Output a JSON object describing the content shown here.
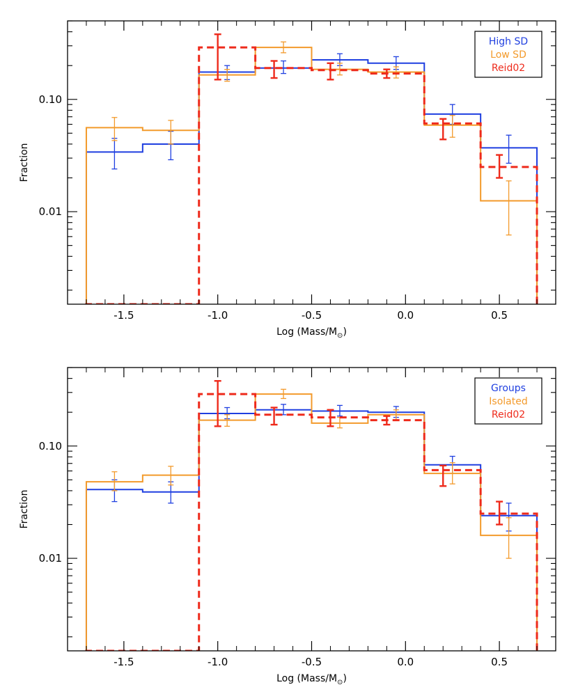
{
  "chart_data": [
    {
      "type": "step",
      "title": "",
      "xlabel": "Log (Mass/M",
      "xlabel_sub": "⊙",
      "xlabel_close": ")",
      "ylabel": "Fraction",
      "xlim": [
        -1.8,
        0.8
      ],
      "ylim": [
        0.0015,
        0.5
      ],
      "yscale": "log",
      "grid": false,
      "legend_position": "top-right",
      "xticks": [
        -1.5,
        -1.0,
        -0.5,
        0.0,
        0.5
      ],
      "xtick_labels": [
        "-1.5",
        "-1.0",
        "-0.5",
        "0.0",
        "0.5"
      ],
      "yticks": [
        0.01,
        0.1
      ],
      "ytick_labels": [
        "0.01",
        "0.10"
      ],
      "series": [
        {
          "name": "High SD",
          "color": "#1f3fe0",
          "style": "solid",
          "bins": [
            {
              "x0": -1.7,
              "x1": -1.4,
              "y": 0.034
            },
            {
              "x0": -1.4,
              "x1": -1.1,
              "y": 0.04
            },
            {
              "x0": -1.1,
              "x1": -0.8,
              "y": 0.175
            },
            {
              "x0": -0.8,
              "x1": -0.5,
              "y": 0.19
            },
            {
              "x0": -0.5,
              "x1": -0.2,
              "y": 0.225
            },
            {
              "x0": -0.2,
              "x1": 0.1,
              "y": 0.21
            },
            {
              "x0": 0.1,
              "x1": 0.4,
              "y": 0.074
            },
            {
              "x0": 0.4,
              "x1": 0.7,
              "y": 0.037
            }
          ],
          "errorbars": [
            {
              "x": -1.55,
              "low": 0.024,
              "high": 0.045
            },
            {
              "x": -1.25,
              "low": 0.029,
              "high": 0.052
            },
            {
              "x": -0.95,
              "low": 0.15,
              "high": 0.2
            },
            {
              "x": -0.65,
              "low": 0.17,
              "high": 0.22
            },
            {
              "x": -0.35,
              "low": 0.2,
              "high": 0.255
            },
            {
              "x": -0.05,
              "low": 0.185,
              "high": 0.24
            },
            {
              "x": 0.25,
              "low": 0.06,
              "high": 0.09
            },
            {
              "x": 0.55,
              "low": 0.027,
              "high": 0.048
            }
          ]
        },
        {
          "name": "Low SD",
          "color": "#f39a2b",
          "style": "solid",
          "bins": [
            {
              "x0": -1.7,
              "x1": -1.4,
              "y": 0.056
            },
            {
              "x0": -1.4,
              "x1": -1.1,
              "y": 0.053
            },
            {
              "x0": -1.1,
              "x1": -0.8,
              "y": 0.165
            },
            {
              "x0": -0.8,
              "x1": -0.5,
              "y": 0.29
            },
            {
              "x0": -0.5,
              "x1": -0.2,
              "y": 0.185
            },
            {
              "x0": -0.2,
              "x1": 0.1,
              "y": 0.175
            },
            {
              "x0": 0.1,
              "x1": 0.4,
              "y": 0.059
            },
            {
              "x0": 0.4,
              "x1": 0.7,
              "y": 0.0125
            }
          ],
          "errorbars": [
            {
              "x": -1.55,
              "low": 0.043,
              "high": 0.069
            },
            {
              "x": -1.25,
              "low": 0.04,
              "high": 0.065
            },
            {
              "x": -0.95,
              "low": 0.145,
              "high": 0.185
            },
            {
              "x": -0.65,
              "low": 0.26,
              "high": 0.325
            },
            {
              "x": -0.35,
              "low": 0.165,
              "high": 0.21
            },
            {
              "x": -0.05,
              "low": 0.155,
              "high": 0.195
            },
            {
              "x": 0.25,
              "low": 0.046,
              "high": 0.072
            },
            {
              "x": 0.55,
              "low": 0.0062,
              "high": 0.0188
            }
          ]
        },
        {
          "name": "Reid02",
          "color": "#ee2a1b",
          "style": "dashed",
          "bins": [
            {
              "x0": -1.7,
              "x1": -1.4,
              "y": 0.0015
            },
            {
              "x0": -1.4,
              "x1": -1.1,
              "y": 0.0015
            },
            {
              "x0": -1.1,
              "x1": -0.8,
              "y": 0.29
            },
            {
              "x0": -0.8,
              "x1": -0.5,
              "y": 0.19
            },
            {
              "x0": -0.5,
              "x1": -0.2,
              "y": 0.182
            },
            {
              "x0": -0.2,
              "x1": 0.1,
              "y": 0.17
            },
            {
              "x0": 0.1,
              "x1": 0.4,
              "y": 0.061
            },
            {
              "x0": 0.4,
              "x1": 0.7,
              "y": 0.025
            }
          ],
          "errorbars": [
            {
              "x": -1.0,
              "low": 0.15,
              "high": 0.38
            },
            {
              "x": -0.7,
              "low": 0.155,
              "high": 0.22
            },
            {
              "x": -0.4,
              "low": 0.15,
              "high": 0.21
            },
            {
              "x": -0.1,
              "low": 0.155,
              "high": 0.185
            },
            {
              "x": 0.2,
              "low": 0.044,
              "high": 0.067
            },
            {
              "x": 0.5,
              "low": 0.02,
              "high": 0.032
            }
          ]
        }
      ]
    },
    {
      "type": "step",
      "title": "",
      "xlabel": "Log (Mass/M",
      "xlabel_sub": "⊙",
      "xlabel_close": ")",
      "ylabel": "Fraction",
      "xlim": [
        -1.8,
        0.8
      ],
      "ylim": [
        0.0015,
        0.5
      ],
      "yscale": "log",
      "grid": false,
      "legend_position": "top-right",
      "xticks": [
        -1.5,
        -1.0,
        -0.5,
        0.0,
        0.5
      ],
      "xtick_labels": [
        "-1.5",
        "-1.0",
        "-0.5",
        "0.0",
        "0.5"
      ],
      "yticks": [
        0.01,
        0.1
      ],
      "ytick_labels": [
        "0.01",
        "0.10"
      ],
      "series": [
        {
          "name": "Groups",
          "color": "#1f3fe0",
          "style": "solid",
          "bins": [
            {
              "x0": -1.7,
              "x1": -1.4,
              "y": 0.041
            },
            {
              "x0": -1.4,
              "x1": -1.1,
              "y": 0.039
            },
            {
              "x0": -1.1,
              "x1": -0.8,
              "y": 0.195
            },
            {
              "x0": -0.8,
              "x1": -0.5,
              "y": 0.21
            },
            {
              "x0": -0.5,
              "x1": -0.2,
              "y": 0.205
            },
            {
              "x0": -0.2,
              "x1": 0.1,
              "y": 0.2
            },
            {
              "x0": 0.1,
              "x1": 0.4,
              "y": 0.068
            },
            {
              "x0": 0.4,
              "x1": 0.7,
              "y": 0.024
            }
          ],
          "errorbars": [
            {
              "x": -1.55,
              "low": 0.032,
              "high": 0.05
            },
            {
              "x": -1.25,
              "low": 0.031,
              "high": 0.048
            },
            {
              "x": -0.95,
              "low": 0.175,
              "high": 0.22
            },
            {
              "x": -0.65,
              "low": 0.19,
              "high": 0.235
            },
            {
              "x": -0.35,
              "low": 0.185,
              "high": 0.23
            },
            {
              "x": -0.05,
              "low": 0.18,
              "high": 0.225
            },
            {
              "x": 0.25,
              "low": 0.057,
              "high": 0.081
            },
            {
              "x": 0.55,
              "low": 0.0175,
              "high": 0.031
            }
          ]
        },
        {
          "name": "Isolated",
          "color": "#f39a2b",
          "style": "solid",
          "bins": [
            {
              "x0": -1.7,
              "x1": -1.4,
              "y": 0.048
            },
            {
              "x0": -1.4,
              "x1": -1.1,
              "y": 0.055
            },
            {
              "x0": -1.1,
              "x1": -0.8,
              "y": 0.17
            },
            {
              "x0": -0.8,
              "x1": -0.5,
              "y": 0.29
            },
            {
              "x0": -0.5,
              "x1": -0.2,
              "y": 0.16
            },
            {
              "x0": -0.2,
              "x1": 0.1,
              "y": 0.19
            },
            {
              "x0": 0.1,
              "x1": 0.4,
              "y": 0.057
            },
            {
              "x0": 0.4,
              "x1": 0.7,
              "y": 0.016
            }
          ],
          "errorbars": [
            {
              "x": -1.55,
              "low": 0.04,
              "high": 0.059
            },
            {
              "x": -1.25,
              "low": 0.045,
              "high": 0.066
            },
            {
              "x": -0.95,
              "low": 0.15,
              "high": 0.19
            },
            {
              "x": -0.65,
              "low": 0.265,
              "high": 0.32
            },
            {
              "x": -0.35,
              "low": 0.145,
              "high": 0.18
            },
            {
              "x": -0.05,
              "low": 0.17,
              "high": 0.21
            },
            {
              "x": 0.25,
              "low": 0.046,
              "high": 0.071
            },
            {
              "x": 0.55,
              "low": 0.01,
              "high": 0.023
            }
          ]
        },
        {
          "name": "Reid02",
          "color": "#ee2a1b",
          "style": "dashed",
          "bins": [
            {
              "x0": -1.7,
              "x1": -1.4,
              "y": 0.0015
            },
            {
              "x0": -1.4,
              "x1": -1.1,
              "y": 0.0015
            },
            {
              "x0": -1.1,
              "x1": -0.8,
              "y": 0.29
            },
            {
              "x0": -0.8,
              "x1": -0.5,
              "y": 0.19
            },
            {
              "x0": -0.5,
              "x1": -0.2,
              "y": 0.18
            },
            {
              "x0": -0.2,
              "x1": 0.1,
              "y": 0.17
            },
            {
              "x0": 0.1,
              "x1": 0.4,
              "y": 0.061
            },
            {
              "x0": 0.4,
              "x1": 0.7,
              "y": 0.025
            }
          ],
          "errorbars": [
            {
              "x": -1.0,
              "low": 0.15,
              "high": 0.38
            },
            {
              "x": -0.7,
              "low": 0.155,
              "high": 0.22
            },
            {
              "x": -0.4,
              "low": 0.15,
              "high": 0.21
            },
            {
              "x": -0.1,
              "low": 0.155,
              "high": 0.185
            },
            {
              "x": 0.2,
              "low": 0.044,
              "high": 0.067
            },
            {
              "x": 0.5,
              "low": 0.02,
              "high": 0.032
            }
          ]
        }
      ]
    }
  ]
}
